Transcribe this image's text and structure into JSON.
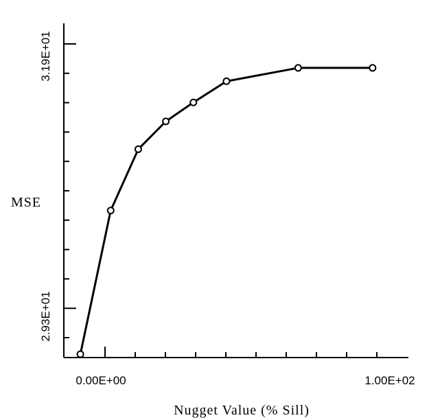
{
  "chart_data": {
    "type": "line",
    "title": "",
    "xlabel": "Nugget Value (% Sill)",
    "ylabel": "MSE",
    "x_tick_labels": [
      "0.00E+00",
      "1.00E+02"
    ],
    "y_tick_labels": [
      "2.93E+01",
      "3.19E+01"
    ],
    "xlim": [
      -15,
      110
    ],
    "ylim": [
      29.0,
      32.0
    ],
    "grid": false,
    "series": [
      {
        "x": [
          -9,
          2,
          12,
          22,
          32,
          44,
          70,
          97
        ],
        "y": [
          29.03,
          30.32,
          30.87,
          31.12,
          31.29,
          31.48,
          31.6,
          31.6
        ]
      }
    ]
  }
}
